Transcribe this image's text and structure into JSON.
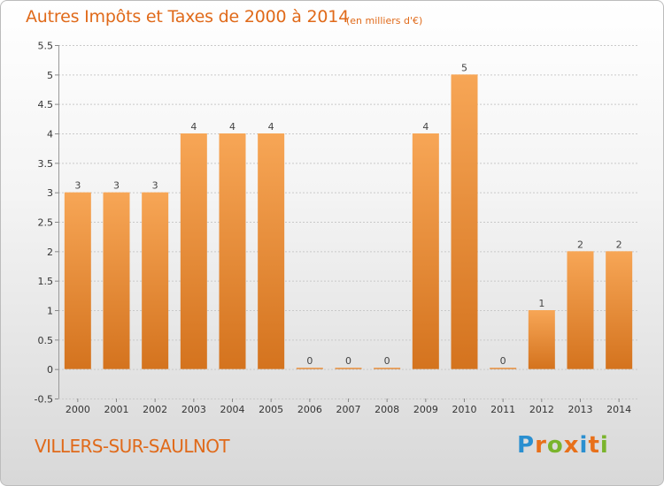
{
  "header": {
    "title": "Autres Impôts et Taxes de 2000 à 2014",
    "subtitle": "(en milliers d'€)"
  },
  "footer": {
    "commune": "VILLERS-SUR-SAULNOT",
    "logo_text": "Proxiti",
    "logo_letters": [
      {
        "ch": "P",
        "color": "#2a8fd0"
      },
      {
        "ch": "r",
        "color": "#e8701a"
      },
      {
        "ch": "o",
        "color": "#7ab42c"
      },
      {
        "ch": "x",
        "color": "#e8701a"
      },
      {
        "ch": "i",
        "color": "#2a8fd0"
      },
      {
        "ch": "t",
        "color": "#e8701a"
      },
      {
        "ch": "i",
        "color": "#7ab42c"
      }
    ]
  },
  "colors": {
    "accent": "#e06a1a",
    "bar_light": "#f7a253",
    "bar_dark": "#d4741f",
    "grid": "#c8c8c8",
    "axis_text": "#333333"
  },
  "chart_data": {
    "type": "bar",
    "title": "Autres Impôts et Taxes de 2000 à 2014",
    "subtitle": "(en milliers d'€)",
    "xlabel": "",
    "ylabel": "",
    "categories": [
      "2000",
      "2001",
      "2002",
      "2003",
      "2004",
      "2005",
      "2006",
      "2007",
      "2008",
      "2009",
      "2010",
      "2011",
      "2012",
      "2013",
      "2014"
    ],
    "values": [
      3,
      3,
      3,
      4,
      4,
      4,
      0,
      0,
      0,
      4,
      5,
      0,
      1,
      2,
      2
    ],
    "data_labels": [
      "3",
      "3",
      "3",
      "4",
      "4",
      "4",
      "0",
      "0",
      "0",
      "4",
      "5",
      "0",
      "1",
      "2",
      "2"
    ],
    "y_ticks": [
      "-0.5",
      "0",
      "0.5",
      "1",
      "1.5",
      "2",
      "2.5",
      "3",
      "3.5",
      "4",
      "4.5",
      "5",
      "5.5"
    ],
    "ylim": [
      -0.5,
      5.5
    ],
    "grid": true,
    "legend": "none"
  }
}
